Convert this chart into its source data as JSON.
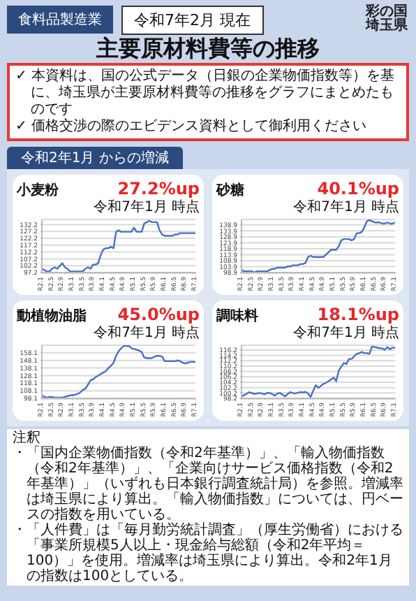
{
  "chart_data": [
    {
      "type": "other",
      "title": "主要原材料費等の推移",
      "annotations": [
        "食料品製造業",
        "令和7年2月 現在",
        "彩の国埼玉県",
        "✓ 本資料は、国の公式データ（日銀の企業物価指数等）を基に、埼玉県が主要原材料費等の推移をグラフにまとめたものです",
        "✓ 価格交渉の際のエビデンス資料として御利用ください",
        "令和2年1月 からの増減"
      ]
    },
    {
      "type": "line",
      "title": "小麦粉",
      "annotations": [
        "27.2%up",
        "令和7年1月 時点"
      ],
      "categories": [
        "R2.1",
        null,
        null,
        null,
        "R2.5",
        null,
        null,
        null,
        "R2.9",
        null,
        null,
        null,
        "R3.1",
        null,
        null,
        null,
        "R3.5",
        null,
        null,
        null,
        "R3.9",
        null,
        null,
        null,
        "R4.1",
        null,
        null,
        null,
        "R4.5",
        null,
        null,
        null,
        "R4.9",
        null,
        null,
        null,
        "R5.1",
        null,
        null,
        null,
        "R5.5",
        null,
        null,
        null,
        "R5.9",
        null,
        null,
        null,
        "R6.1",
        null,
        null,
        null,
        "R6.5",
        null,
        null,
        null,
        "R6.9",
        null,
        null,
        null,
        "R7.1"
      ],
      "values": [
        100,
        99,
        98,
        98,
        100,
        101,
        100,
        102,
        104,
        101,
        100,
        98,
        98,
        98,
        98,
        98,
        98,
        100,
        101,
        100,
        103,
        103,
        104,
        110,
        114,
        115,
        115,
        116,
        115,
        127,
        128,
        127,
        127,
        127,
        127,
        127,
        130,
        127,
        127,
        127,
        133,
        134,
        135,
        134,
        134,
        134,
        128,
        125,
        124,
        124,
        124,
        124,
        125,
        125,
        126,
        126,
        126,
        126,
        126,
        126,
        126
      ],
      "color": "#4472c4",
      "ylim": [
        97.2,
        136
      ],
      "yticks": [
        97.2,
        102.2,
        107.2,
        112.2,
        117.2,
        122.2,
        127.2,
        132.2
      ],
      "grid": "y"
    },
    {
      "type": "line",
      "title": "砂糖",
      "annotations": [
        "40.1%up",
        "令和7年1月 時点"
      ],
      "categories": [
        "R2.1",
        null,
        null,
        null,
        "R2.5",
        null,
        null,
        null,
        "R2.9",
        null,
        null,
        null,
        "R3.1",
        null,
        null,
        null,
        "R3.5",
        null,
        null,
        null,
        "R3.9",
        null,
        null,
        null,
        "R4.1",
        null,
        null,
        null,
        "R4.5",
        null,
        null,
        null,
        "R4.9",
        null,
        null,
        null,
        "R5.1",
        null,
        null,
        null,
        "R5.5",
        null,
        null,
        null,
        "R5.9",
        null,
        null,
        null,
        "R6.1",
        null,
        null,
        null,
        "R6.5",
        null,
        null,
        null,
        "R6.9",
        null,
        null,
        null,
        "R7.1"
      ],
      "values": [
        101,
        100,
        100,
        100,
        100,
        99,
        100,
        100,
        100,
        100,
        100,
        101,
        102,
        102,
        103,
        103,
        103,
        103,
        104,
        104,
        105,
        105,
        105,
        106,
        106,
        107,
        112,
        113,
        112,
        112,
        112,
        112,
        112,
        114,
        116,
        118,
        118,
        118,
        121,
        126,
        127,
        127,
        127,
        126,
        127,
        132,
        132,
        133,
        137,
        142,
        143,
        142,
        141,
        141,
        141,
        140,
        140,
        141,
        140,
        140,
        141
      ],
      "color": "#4472c4",
      "ylim": [
        98.9,
        143.5
      ],
      "yticks": [
        98.9,
        103.9,
        108.9,
        113.9,
        118.9,
        123.9,
        128.9,
        133.9,
        138.9
      ],
      "grid": "y"
    },
    {
      "type": "line",
      "title": "動植物油脂",
      "annotations": [
        "45.0%up",
        "令和7年1月 時点"
      ],
      "categories": [
        "R2.1",
        null,
        null,
        null,
        "R2.5",
        null,
        null,
        null,
        "R2.9",
        null,
        null,
        null,
        "R3.1",
        null,
        null,
        null,
        "R3.5",
        null,
        null,
        null,
        "R3.9",
        null,
        null,
        null,
        "R4.1",
        null,
        null,
        null,
        "R4.5",
        null,
        null,
        null,
        "R4.9",
        null,
        null,
        null,
        "R5.1",
        null,
        null,
        null,
        "R5.5",
        null,
        null,
        null,
        "R5.9",
        null,
        null,
        null,
        "R6.1",
        null,
        null,
        null,
        "R6.5",
        null,
        null,
        null,
        "R6.9",
        null,
        null,
        null,
        "R7.1"
      ],
      "values": [
        102,
        100,
        99,
        100,
        100,
        99,
        99,
        99,
        99,
        100,
        101,
        102,
        102,
        103,
        104,
        106,
        109,
        111,
        116,
        122,
        123,
        126,
        128,
        130,
        132,
        134,
        138,
        141,
        145,
        154,
        160,
        164,
        167,
        167,
        167,
        164,
        163,
        162,
        161,
        159,
        152,
        151,
        151,
        151,
        153,
        154,
        154,
        153,
        147,
        147,
        147,
        147,
        147,
        148,
        147,
        145,
        144,
        145,
        146,
        146,
        146
      ],
      "color": "#4472c4",
      "ylim": [
        98.1,
        168
      ],
      "yticks": [
        98.1,
        108.1,
        118.1,
        128.1,
        138.1,
        148.1,
        158.1
      ],
      "grid": "y"
    },
    {
      "type": "line",
      "title": "調味料",
      "annotations": [
        "18.1%up",
        "令和7年1月 時点"
      ],
      "categories": [
        "R2.1",
        null,
        null,
        null,
        "R2.5",
        null,
        null,
        null,
        "R2.9",
        null,
        null,
        null,
        "R3.1",
        null,
        null,
        null,
        "R3.5",
        null,
        null,
        null,
        "R3.9",
        null,
        null,
        null,
        "R4.1",
        null,
        null,
        null,
        "R4.5",
        null,
        null,
        null,
        "R4.9",
        null,
        null,
        null,
        "R5.1",
        null,
        null,
        null,
        "R5.5",
        null,
        null,
        null,
        "R5.9",
        null,
        null,
        null,
        "R6.1",
        null,
        null,
        null,
        "R6.5",
        null,
        null,
        null,
        "R6.9",
        null,
        null,
        null,
        "R7.1"
      ],
      "values": [
        98.9,
        99.4,
        99.9,
        100.5,
        100.2,
        99.8,
        100.0,
        100.2,
        100.0,
        99.7,
        100.2,
        100.2,
        99.8,
        99.2,
        100.0,
        100.2,
        99.6,
        98.9,
        99.8,
        100.5,
        100.2,
        100.0,
        100.3,
        100.5,
        100.4,
        100.6,
        100.0,
        98.7,
        101.0,
        103.1,
        102.1,
        102.8,
        103.6,
        104.0,
        104.6,
        105.2,
        106.0,
        104.6,
        108.5,
        110.0,
        111.4,
        111.0,
        112.9,
        112.9,
        113.8,
        114.8,
        115.0,
        115.5,
        115.0,
        115.1,
        114.8,
        117.5,
        117.3,
        117.1,
        116.9,
        116.8,
        116.3,
        117.3,
        116.5,
        117.1,
        117.1
      ],
      "color": "#4472c4",
      "ylim": [
        98.2,
        118
      ],
      "yticks": [
        98.2,
        100.2,
        102.2,
        104.2,
        106.2,
        108.2,
        110.2,
        112.2,
        114.2,
        116.2
      ],
      "grid": "y"
    },
    {
      "type": "other",
      "annotations": [
        "注釈",
        "・「国内企業物価指数（令和2年基準）」、「輸入物価指数（令和2年基準）」、「企業向けサービス価格指数（令和2年基準）」（いずれも日本銀行調査統計局）を参照。増減率は埼玉県により算出。「輸入物価指数」については、円ベースの指数を用いている。",
        "・「人件費」は「毎月勤労統計調査」（厚生労働省）における「事業所規模5人以上・現金給与総額（令和2年平均＝100）」を使用。増減率は埼玉県により算出。令和2年1月の指数は100としている。"
      ]
    }
  ]
}
